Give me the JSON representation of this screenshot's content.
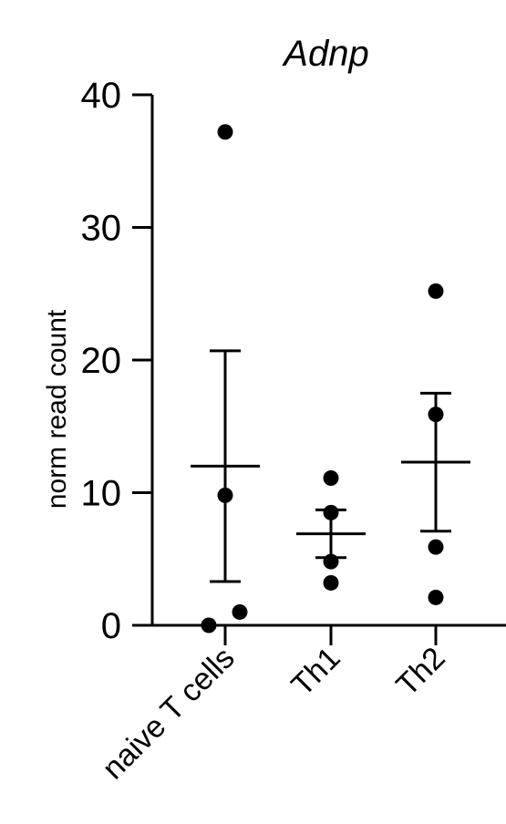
{
  "chart_data": {
    "type": "scatter",
    "title": "Adnp",
    "ylabel": "norm read count",
    "xlabel": "",
    "ylim": [
      0,
      40
    ],
    "yticks": [
      0,
      10,
      20,
      30,
      40
    ],
    "categories": [
      "naive T cells",
      "Th1",
      "Th2"
    ],
    "groups": [
      {
        "category": "naive T cells",
        "points": [
          37.2,
          9.8,
          1.0,
          0.0
        ],
        "mean": 12.0,
        "err_low": 3.3,
        "err_high": 20.7
      },
      {
        "category": "Th1",
        "points": [
          11.1,
          8.5,
          4.8,
          3.2
        ],
        "mean": 6.9,
        "err_low": 5.1,
        "err_high": 8.7
      },
      {
        "category": "Th2",
        "points": [
          25.2,
          15.9,
          5.9,
          2.1
        ],
        "mean": 12.3,
        "err_low": 7.1,
        "err_high": 17.5
      }
    ],
    "grid": false,
    "colors": {
      "points": "#000000",
      "axes": "#000000"
    }
  }
}
